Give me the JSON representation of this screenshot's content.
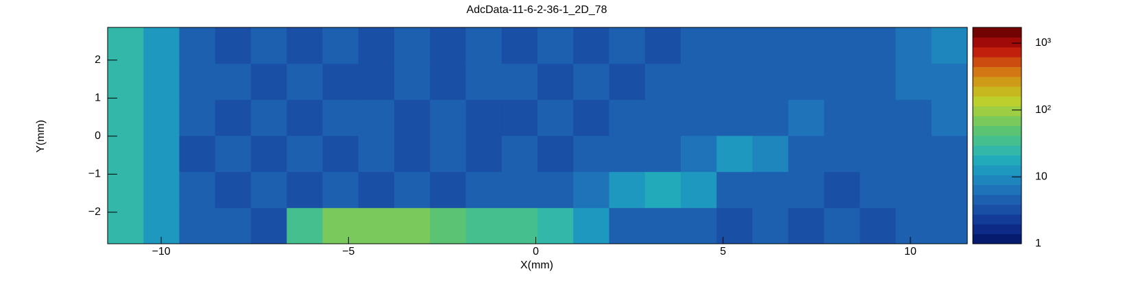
{
  "chart_data": {
    "type": "heatmap",
    "title": "AdcData-11-6-2-36-1_2D_78",
    "x_label": "X(mm)",
    "y_label": "Y(mm)",
    "xlim": [
      -11.43,
      11.52
    ],
    "ylim": [
      -2.83,
      2.86
    ],
    "xticks": [
      {
        "value": -10,
        "label": "−10"
      },
      {
        "value": -5,
        "label": "−5"
      },
      0,
      5,
      10
    ],
    "yticks": [
      {
        "value": -2,
        "label": "−2"
      },
      {
        "value": -1,
        "label": "−1"
      },
      0,
      1,
      2
    ],
    "zlim": [
      1,
      1720
    ],
    "zlog": true,
    "zticks": [
      1,
      10,
      {
        "value": 100,
        "label": "10²"
      },
      {
        "value": 1000,
        "label": "10³"
      }
    ],
    "palette": [
      "#061a6e",
      "#0c2a86",
      "#123c97",
      "#1a4fa6",
      "#1d60b0",
      "#1f73b8",
      "#1f86bd",
      "#1f98bf",
      "#22aabb",
      "#32b7a8",
      "#45bf8e",
      "#5ac474",
      "#7ac95c",
      "#9ccd43",
      "#bccf2c",
      "#c8b81f",
      "#cf9a18",
      "#d27714",
      "#cc4c10",
      "#c0200c",
      "#a00a08",
      "#720404"
    ],
    "z": [
      [
        25,
        12,
        4,
        4,
        3,
        30,
        60,
        80,
        60,
        50,
        40,
        35,
        25,
        15,
        5,
        4,
        4,
        3,
        4,
        3,
        4,
        3,
        4,
        4
      ],
      [
        28,
        13,
        4,
        3,
        4,
        3,
        4,
        3,
        4,
        3,
        4,
        4,
        5,
        6,
        15,
        18,
        15,
        5,
        4,
        4,
        3,
        4,
        4,
        5
      ],
      [
        26,
        12,
        3,
        4,
        3,
        4,
        3,
        4,
        3,
        4,
        3,
        4,
        3,
        4,
        4,
        5,
        6,
        12,
        8,
        5,
        4,
        4,
        5,
        4
      ],
      [
        25,
        11,
        4,
        3,
        4,
        3,
        4,
        4,
        3,
        4,
        3,
        3,
        4,
        3,
        4,
        4,
        4,
        5,
        5,
        6,
        5,
        4,
        4,
        6
      ],
      [
        24,
        12,
        4,
        4,
        3,
        4,
        3,
        3,
        4,
        3,
        4,
        4,
        3,
        4,
        3,
        4,
        4,
        4,
        4,
        5,
        5,
        5,
        6,
        7
      ],
      [
        22,
        11,
        4,
        3,
        4,
        3,
        4,
        3,
        4,
        3,
        4,
        3,
        4,
        3,
        4,
        3,
        4,
        4,
        4,
        4,
        4,
        5,
        6,
        10
      ]
    ]
  }
}
